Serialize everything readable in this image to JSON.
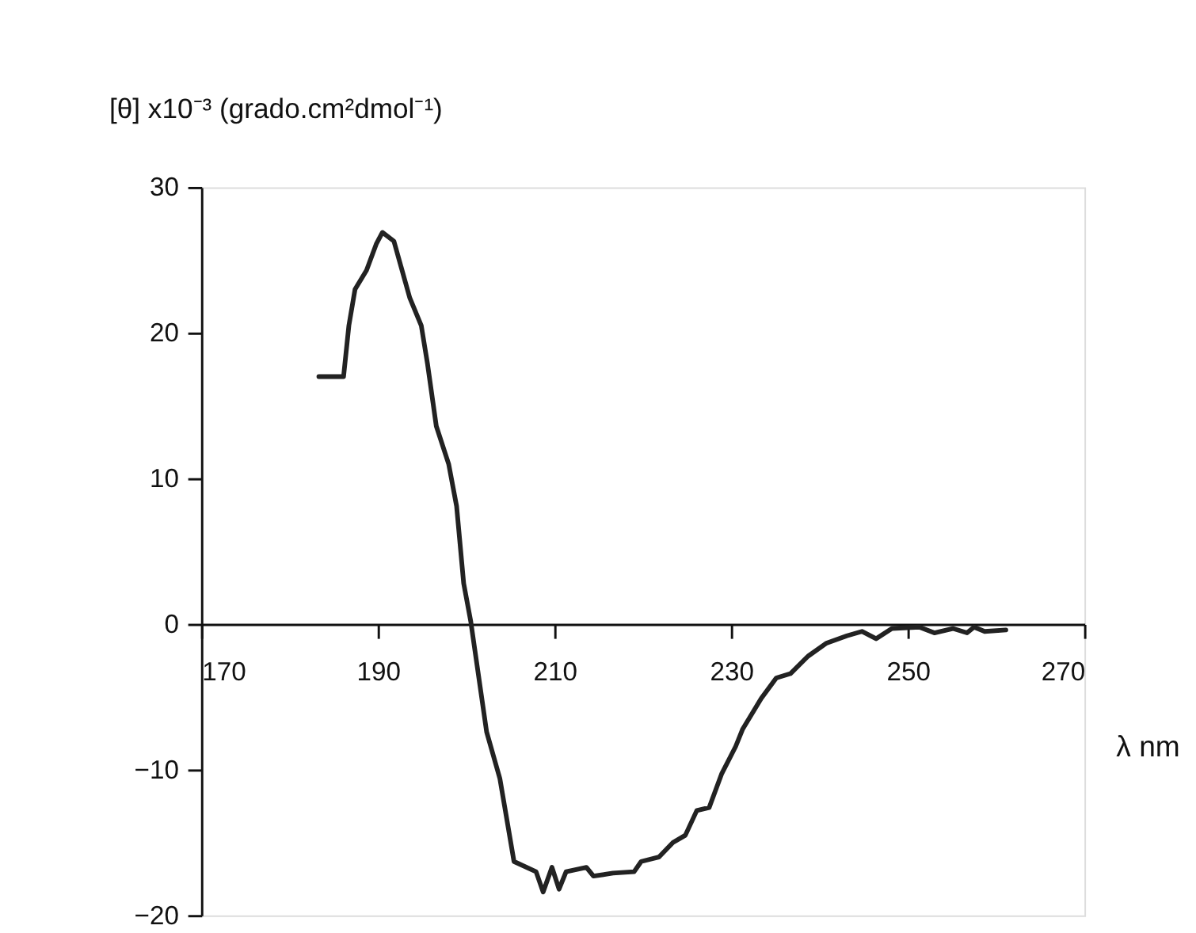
{
  "chart_data": {
    "type": "line",
    "ylabel": "[θ] x10⁻³ (grado.cm²dmol⁻¹)",
    "xlabel": "λ nm",
    "xlim": [
      170,
      270
    ],
    "xticks": [
      170,
      190,
      210,
      230,
      250,
      270
    ],
    "ylim": [
      -20,
      30
    ],
    "yticks": [
      -20,
      -10,
      0,
      10,
      20,
      30
    ],
    "grid": false,
    "marker": "none",
    "line_style": "solid",
    "series": [
      {
        "color": "#222222",
        "x": [
          183.3,
          186.1,
          186.7,
          187.4,
          188.7,
          189.8,
          190.5,
          191.8,
          193.6,
          194.9,
          195.6,
          196.6,
          198.0,
          198.9,
          199.7,
          200.5,
          202.3,
          203.8,
          205.4,
          207.9,
          208.7,
          209.7,
          210.5,
          211.3,
          213.6,
          214.4,
          216.6,
          219.0,
          219.8,
          221.8,
          223.4,
          224.8,
          226.1,
          227.5,
          228.9,
          230.5,
          231.3,
          233.4,
          235.1,
          236.7,
          238.7,
          240.8,
          243.1,
          244.8,
          246.4,
          248.2,
          251.3,
          253.0,
          255.1,
          256.7,
          257.5,
          258.7,
          261.1
        ],
        "values": [
          17,
          17,
          20.5,
          23,
          24.3,
          26.1,
          26.9,
          26.3,
          22.4,
          20.5,
          17.9,
          13.6,
          11,
          8.1,
          2.8,
          0.2,
          -7.4,
          -10.6,
          -16.3,
          -17,
          -18.4,
          -16.7,
          -18.2,
          -17,
          -16.7,
          -17.3,
          -17.1,
          -17,
          -16.3,
          -16,
          -15,
          -14.5,
          -12.8,
          -12.6,
          -10.3,
          -8.4,
          -7.2,
          -5.1,
          -3.7,
          -3.4,
          -2.2,
          -1.3,
          -0.8,
          -0.5,
          -1,
          -0.3,
          -0.2,
          -0.6,
          -0.3,
          -0.6,
          -0.2,
          -0.5,
          -0.4
        ]
      }
    ]
  }
}
